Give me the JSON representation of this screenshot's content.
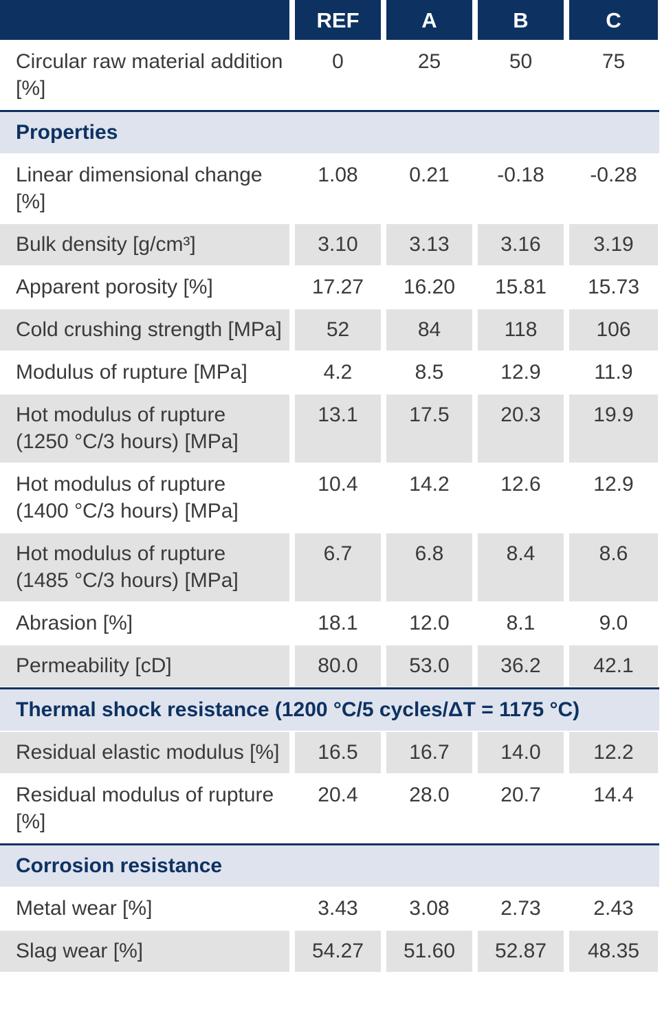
{
  "table": {
    "columns": [
      "REF",
      "A",
      "B",
      "C"
    ],
    "rows": [
      {
        "label": "Circular raw material addition [%]",
        "values": [
          "0",
          "25",
          "50",
          "75"
        ]
      },
      {
        "section": "Properties"
      },
      {
        "label": "Linear dimensional change [%]",
        "values": [
          "1.08",
          "0.21",
          "-0.18",
          "-0.28"
        ]
      },
      {
        "label": "Bulk density [g/cm³]",
        "values": [
          "3.10",
          "3.13",
          "3.16",
          "3.19"
        ],
        "shaded": true
      },
      {
        "label": "Apparent porosity [%]",
        "values": [
          "17.27",
          "16.20",
          "15.81",
          "15.73"
        ]
      },
      {
        "label": "Cold crushing strength [MPa]",
        "values": [
          "52",
          "84",
          "118",
          "106"
        ],
        "shaded": true
      },
      {
        "label": "Modulus of rupture [MPa]",
        "values": [
          "4.2",
          "8.5",
          "12.9",
          "11.9"
        ]
      },
      {
        "label": "Hot modulus of rupture (1250 °C/3 hours) [MPa]",
        "values": [
          "13.1",
          "17.5",
          "20.3",
          "19.9"
        ],
        "shaded": true
      },
      {
        "label": "Hot modulus of rupture (1400 °C/3 hours) [MPa]",
        "values": [
          "10.4",
          "14.2",
          "12.6",
          "12.9"
        ]
      },
      {
        "label": "Hot modulus of rupture (1485 °C/3 hours) [MPa]",
        "values": [
          "6.7",
          "6.8",
          "8.4",
          "8.6"
        ],
        "shaded": true
      },
      {
        "label": "Abrasion [%]",
        "values": [
          "18.1",
          "12.0",
          "8.1",
          "9.0"
        ]
      },
      {
        "label": "Permeability [cD]",
        "values": [
          "80.0",
          "53.0",
          "36.2",
          "42.1"
        ],
        "shaded": true
      },
      {
        "section": "Thermal shock resistance (1200 °C/5 cycles/ΔT = 1175 °C)"
      },
      {
        "label": "Residual elastic modulus [%]",
        "values": [
          "16.5",
          "16.7",
          "14.0",
          "12.2"
        ],
        "shaded": true
      },
      {
        "label": "Residual modulus of rupture [%]",
        "values": [
          "20.4",
          "28.0",
          "20.7",
          "14.4"
        ]
      },
      {
        "section": "Corrosion resistance"
      },
      {
        "label": "Metal wear [%]",
        "values": [
          "3.43",
          "3.08",
          "2.73",
          "2.43"
        ]
      },
      {
        "label": "Slag wear [%]",
        "values": [
          "54.27",
          "51.60",
          "52.87",
          "48.35"
        ],
        "shaded": true
      }
    ]
  }
}
